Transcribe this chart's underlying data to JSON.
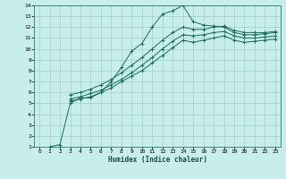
{
  "xlabel": "Humidex (Indice chaleur)",
  "background_color": "#c8eeec",
  "grid_color": "#a0d0cc",
  "line_color": "#1a6b5a",
  "xlim": [
    -0.5,
    23.5
  ],
  "ylim": [
    1,
    14
  ],
  "xticks": [
    0,
    1,
    2,
    3,
    4,
    5,
    6,
    7,
    8,
    9,
    10,
    11,
    12,
    13,
    14,
    15,
    16,
    17,
    18,
    19,
    20,
    21,
    22,
    23
  ],
  "yticks": [
    1,
    2,
    3,
    4,
    5,
    6,
    7,
    8,
    9,
    10,
    11,
    12,
    13,
    14
  ],
  "lines": [
    {
      "x": [
        1,
        2,
        3,
        4,
        5,
        6,
        7,
        8,
        9,
        10,
        11,
        12,
        13,
        14,
        15,
        16,
        17,
        18,
        19,
        20,
        21,
        22,
        23
      ],
      "y": [
        1.0,
        1.2,
        5.0,
        5.5,
        5.5,
        6.0,
        7.0,
        8.3,
        9.8,
        10.5,
        12.0,
        13.2,
        13.5,
        14.0,
        12.5,
        12.2,
        12.1,
        12.0,
        11.5,
        11.3,
        11.3,
        11.4,
        11.5
      ]
    },
    {
      "x": [
        3,
        4,
        5,
        6,
        7,
        8,
        9,
        10,
        11,
        12,
        13,
        14,
        15,
        16,
        17,
        18,
        19,
        20,
        21,
        22,
        23
      ],
      "y": [
        5.8,
        6.0,
        6.3,
        6.7,
        7.2,
        7.8,
        8.5,
        9.2,
        10.0,
        10.8,
        11.5,
        12.0,
        11.8,
        11.8,
        12.0,
        12.1,
        11.7,
        11.5,
        11.5,
        11.5,
        11.6
      ]
    },
    {
      "x": [
        3,
        4,
        5,
        6,
        7,
        8,
        9,
        10,
        11,
        12,
        13,
        14,
        15,
        16,
        17,
        18,
        19,
        20,
        21,
        22,
        23
      ],
      "y": [
        5.4,
        5.6,
        5.9,
        6.2,
        6.7,
        7.2,
        7.8,
        8.5,
        9.2,
        10.0,
        10.7,
        11.3,
        11.2,
        11.3,
        11.5,
        11.6,
        11.2,
        11.0,
        11.0,
        11.1,
        11.2
      ]
    },
    {
      "x": [
        3,
        4,
        5,
        6,
        7,
        8,
        9,
        10,
        11,
        12,
        13,
        14,
        15,
        16,
        17,
        18,
        19,
        20,
        21,
        22,
        23
      ],
      "y": [
        5.2,
        5.4,
        5.6,
        6.0,
        6.4,
        7.0,
        7.5,
        8.0,
        8.7,
        9.4,
        10.1,
        10.8,
        10.6,
        10.8,
        11.0,
        11.2,
        10.8,
        10.6,
        10.7,
        10.8,
        10.9
      ]
    }
  ]
}
